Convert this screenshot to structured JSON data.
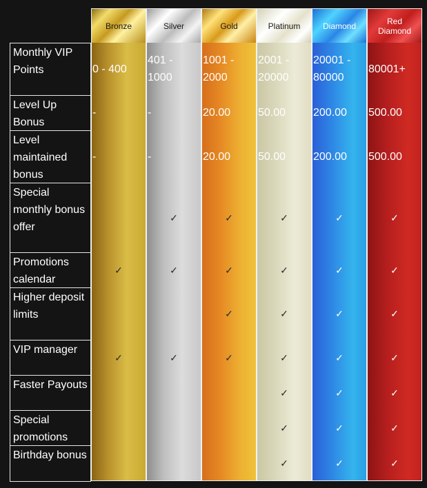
{
  "tiers": [
    {
      "key": "bronze",
      "label": "Bronze",
      "label_color": "#1a1a1a"
    },
    {
      "key": "silver",
      "label": "Silver",
      "label_color": "#1a1a1a"
    },
    {
      "key": "gold",
      "label": "Gold",
      "label_color": "#1a1a1a"
    },
    {
      "key": "platinum",
      "label": "Platinum",
      "label_color": "#1a1a1a"
    },
    {
      "key": "diamond",
      "label": "Diamond",
      "label_color": "#ffffff"
    },
    {
      "key": "red-diamond",
      "label": "Red Diamond",
      "label_color": "#ffffff"
    }
  ],
  "rows": [
    {
      "label": "Monthly VIP Points",
      "values": [
        "0 - 400",
        "401 - 1000",
        "1001 - 2000",
        "2001 - 20000",
        "20001 - 80000",
        "80001+"
      ]
    },
    {
      "label": "Level Up Bonus",
      "values": [
        "-",
        "-",
        "20.00",
        "50.00",
        "200.00",
        "500.00"
      ]
    },
    {
      "label": "Level maintained bonus",
      "values": [
        "-",
        "-",
        "20.00",
        "50.00",
        "200.00",
        "500.00"
      ]
    },
    {
      "label": "Special monthly bonus offer",
      "checks": [
        false,
        true,
        true,
        true,
        true,
        true
      ]
    },
    {
      "label": "Promotions calendar",
      "checks": [
        true,
        true,
        true,
        true,
        true,
        true
      ]
    },
    {
      "label": "Higher deposit limits",
      "checks": [
        false,
        false,
        true,
        true,
        true,
        true
      ]
    },
    {
      "label": "VIP manager",
      "checks": [
        true,
        true,
        true,
        true,
        true,
        true
      ]
    },
    {
      "label": "Faster Payouts",
      "checks": [
        false,
        false,
        false,
        true,
        true,
        true
      ]
    },
    {
      "label": "Special promotions",
      "checks": [
        false,
        false,
        false,
        true,
        true,
        true
      ]
    },
    {
      "label": "Birthday bonus",
      "checks": [
        false,
        false,
        false,
        true,
        true,
        true
      ]
    }
  ],
  "check_icon": "checkmark-icon",
  "check_glyph": "✓",
  "colors": {
    "background": "#141414",
    "bronze": "#c9a93a",
    "silver": "#c8c8c8",
    "gold": "#e8a22a",
    "platinum": "#dedcc0",
    "diamond": "#2a8be0",
    "red_diamond": "#c62626"
  }
}
